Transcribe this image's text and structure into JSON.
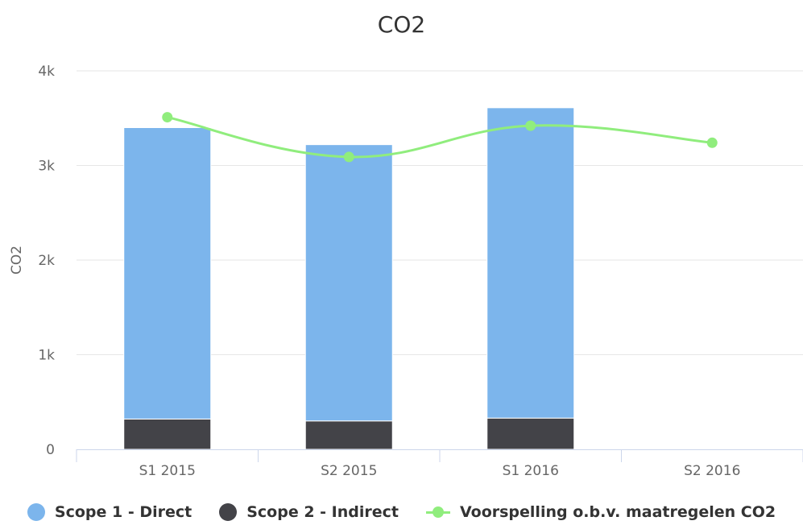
{
  "chart_data": {
    "type": "bar",
    "title": "CO2",
    "ylabel": "CO2",
    "xlabel": "",
    "categories": [
      "S1 2015",
      "S2 2015",
      "S1 2016",
      "S2 2016"
    ],
    "y_ticks": [
      "0",
      "1k",
      "2k",
      "3k",
      "4k"
    ],
    "ylim": [
      0,
      4000
    ],
    "stacked": true,
    "series": [
      {
        "name": "Scope 1 - Direct",
        "type": "bar",
        "color": "#7cb5ec",
        "values": [
          3080,
          2920,
          3280,
          null
        ]
      },
      {
        "name": "Scope 2 - Indirect",
        "type": "bar",
        "color": "#434348",
        "values": [
          320,
          300,
          330,
          null
        ]
      },
      {
        "name": "Voorspelling o.b.v. maatregelen CO2",
        "type": "line",
        "color": "#90ed7d",
        "values": [
          3510,
          3090,
          3420,
          3240
        ]
      }
    ],
    "grid": true,
    "legend_position": "bottom"
  }
}
